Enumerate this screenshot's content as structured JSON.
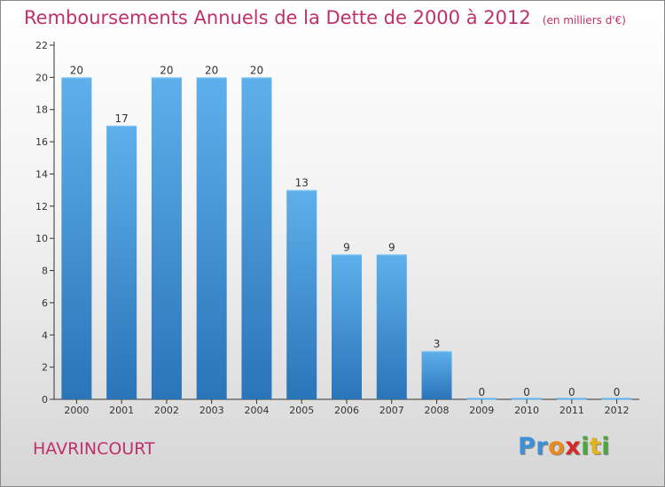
{
  "header": {
    "title": "Remboursements Annuels de la Dette de 2000 à 2012",
    "subtitle": "(en milliers d'€)"
  },
  "commune": "HAVRINCOURT",
  "brand": {
    "name": "Proxiti",
    "letters": [
      {
        "ch": "P",
        "color": "#3d8fd6"
      },
      {
        "ch": "r",
        "color": "#3d8fd6"
      },
      {
        "ch": "o",
        "color": "#e98a1c"
      },
      {
        "ch": "x",
        "color": "#d62828"
      },
      {
        "ch": "i",
        "color": "#4aa83c"
      },
      {
        "ch": "t",
        "color": "#e0b41a"
      },
      {
        "ch": "i",
        "color": "#4aa83c"
      }
    ]
  },
  "colors": {
    "title": "#c0306a",
    "bar_top": "#5eb0ec",
    "bar_bottom": "#2a74b8",
    "axis": "#333333"
  },
  "chart_data": {
    "type": "bar",
    "categories": [
      "2000",
      "2001",
      "2002",
      "2003",
      "2004",
      "2005",
      "2006",
      "2007",
      "2008",
      "2009",
      "2010",
      "2011",
      "2012"
    ],
    "values": [
      20,
      17,
      20,
      20,
      20,
      13,
      9,
      9,
      3,
      0,
      0,
      0,
      0
    ],
    "data_labels": [
      "20",
      "17",
      "20",
      "20",
      "20",
      "13",
      "9",
      "9",
      "3",
      "0",
      "0",
      "0",
      "0"
    ],
    "title": "Remboursements Annuels de la Dette de 2000 à 2012",
    "subtitle": "(en milliers d'€)",
    "xlabel": "",
    "ylabel": "",
    "ylim": [
      0,
      22
    ],
    "yticks": [
      0,
      2,
      4,
      6,
      8,
      10,
      12,
      14,
      16,
      18,
      20,
      22
    ],
    "grid": false,
    "legend": "none"
  }
}
